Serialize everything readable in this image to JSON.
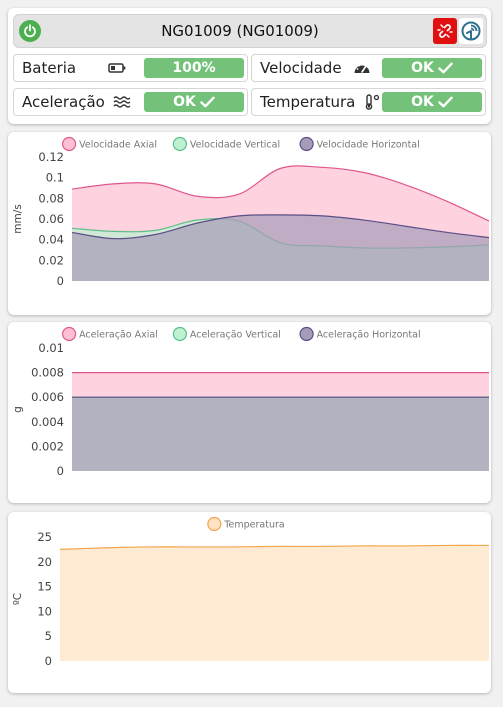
{
  "header": {
    "title": "NG01009 (NG01009)",
    "power_icon": "power-icon",
    "unlink_icon": "unlink-icon",
    "signal_icon": "signal-icon"
  },
  "status": {
    "battery": {
      "label": "Bateria",
      "value": "100%",
      "icon": "battery-icon"
    },
    "velocity": {
      "label": "Velocidade",
      "value": "OK",
      "icon": "speedometer-icon"
    },
    "acceleration": {
      "label": "Aceleração",
      "value": "OK",
      "icon": "vibration-icon"
    },
    "temperature": {
      "label": "Temperatura",
      "value": "OK",
      "icon": "thermometer-icon"
    },
    "ok_color": "#74c27a"
  },
  "chart_data": [
    {
      "type": "area",
      "title": "",
      "ylabel": "mm/s",
      "ylim": [
        0,
        0.12
      ],
      "yticks": [
        "0",
        "0.02",
        "0.04",
        "0.06",
        "0.08",
        "0.1",
        "0.12"
      ],
      "x": [
        0,
        1,
        2,
        3,
        4,
        5,
        6,
        7,
        8,
        9,
        10
      ],
      "legend_position": "top",
      "series": [
        {
          "name": "Velocidade Axial",
          "color": "#e0578f",
          "fill": "#ffc0d4",
          "values": [
            0.089,
            0.094,
            0.094,
            0.082,
            0.084,
            0.109,
            0.11,
            0.105,
            0.093,
            0.077,
            0.058
          ]
        },
        {
          "name": "Velocidade Vertical",
          "color": "#5cc08a",
          "fill": "#bff0d2",
          "values": [
            0.051,
            0.048,
            0.049,
            0.059,
            0.058,
            0.037,
            0.034,
            0.032,
            0.032,
            0.033,
            0.035
          ]
        },
        {
          "name": "Velocidade Horizontal",
          "color": "#5a4f86",
          "fill": "#a79cb8",
          "values": [
            0.047,
            0.041,
            0.045,
            0.056,
            0.063,
            0.064,
            0.063,
            0.059,
            0.053,
            0.047,
            0.042
          ]
        }
      ]
    },
    {
      "type": "area",
      "title": "",
      "ylabel": "g",
      "ylim": [
        0,
        0.01
      ],
      "yticks": [
        "0",
        "0.002",
        "0.004",
        "0.006",
        "0.008",
        "0.01"
      ],
      "x": [
        0,
        1,
        2,
        3,
        4,
        5,
        6,
        7,
        8,
        9,
        10
      ],
      "legend_position": "top",
      "series": [
        {
          "name": "Aceleração Axial",
          "color": "#e0578f",
          "fill": "#ffc0d4",
          "values": [
            0.008,
            0.008,
            0.008,
            0.008,
            0.008,
            0.008,
            0.008,
            0.008,
            0.008,
            0.008,
            0.008
          ]
        },
        {
          "name": "Aceleração Vertical",
          "color": "#5cc08a",
          "fill": "#bff0d2",
          "values": [
            0.006,
            0.006,
            0.006,
            0.006,
            0.006,
            0.006,
            0.006,
            0.006,
            0.006,
            0.006,
            0.006
          ]
        },
        {
          "name": "Aceleração Horizontal",
          "color": "#5a4f86",
          "fill": "#a79cb8",
          "values": [
            0.006,
            0.006,
            0.006,
            0.006,
            0.006,
            0.006,
            0.006,
            0.006,
            0.006,
            0.006,
            0.006
          ]
        }
      ]
    },
    {
      "type": "area",
      "title": "",
      "ylabel": "ºC",
      "ylim": [
        0,
        25
      ],
      "yticks": [
        "0",
        "5",
        "10",
        "15",
        "20",
        "25"
      ],
      "x": [
        0,
        1,
        2,
        3,
        4,
        5,
        6,
        7,
        8,
        9,
        10
      ],
      "legend_position": "top",
      "series": [
        {
          "name": "Temperatura",
          "color": "#f0a64a",
          "fill": "#ffe2c4",
          "values": [
            22.5,
            22.8,
            23.0,
            23.0,
            23.0,
            23.1,
            23.1,
            23.2,
            23.2,
            23.3,
            23.3
          ]
        }
      ]
    }
  ]
}
